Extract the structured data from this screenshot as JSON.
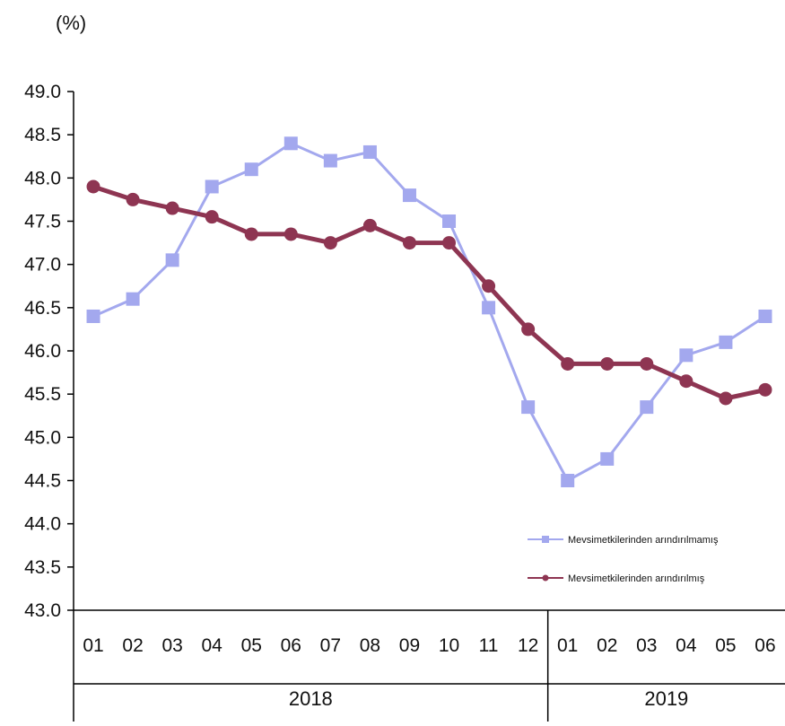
{
  "chart_data": {
    "type": "line",
    "ylabel": "(%)",
    "ylim": [
      43.0,
      49.0
    ],
    "ytick_step": 0.5,
    "ytick_labels": [
      "43.0",
      "43.5",
      "44.0",
      "44.5",
      "45.0",
      "45.5",
      "46.0",
      "46.5",
      "47.0",
      "47.5",
      "48.0",
      "48.5",
      "49.0"
    ],
    "categories": [
      "01",
      "02",
      "03",
      "04",
      "05",
      "06",
      "07",
      "08",
      "09",
      "10",
      "11",
      "12",
      "01",
      "02",
      "03",
      "04",
      "05",
      "06"
    ],
    "years": [
      {
        "label": "2018",
        "count": 12
      },
      {
        "label": "2019",
        "count": 6
      }
    ],
    "legend_position": "bottom-right",
    "series": [
      {
        "name": "Mevsimetkilerinden arındırılmamış",
        "color": "#a3a8ee",
        "marker": "square",
        "values": [
          46.4,
          46.6,
          47.05,
          47.9,
          48.1,
          48.4,
          48.2,
          48.3,
          47.8,
          47.5,
          46.5,
          45.35,
          44.5,
          44.75,
          45.35,
          45.95,
          46.1,
          46.4
        ]
      },
      {
        "name": "Mevsimetkilerinden arındırılmış",
        "color": "#8e3552",
        "marker": "circle",
        "values": [
          47.9,
          47.75,
          47.65,
          47.55,
          47.35,
          47.35,
          47.25,
          47.45,
          47.25,
          47.25,
          46.75,
          46.25,
          45.85,
          45.85,
          45.85,
          45.65,
          45.45,
          45.55
        ]
      }
    ]
  }
}
